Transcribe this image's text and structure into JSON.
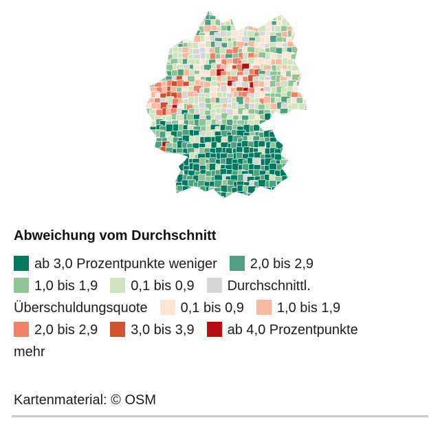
{
  "map": {
    "type": "choropleth",
    "region": "Germany"
  },
  "legend": {
    "title": "Abweichung vom Durchschnitt",
    "items": [
      {
        "label": "ab 3,0 Prozentpunkte weniger",
        "color": "#00795f"
      },
      {
        "label": "2,0 bis 2,9",
        "color": "#4fa07e"
      },
      {
        "label": "1,0 bis 1,9",
        "color": "#8fc497"
      },
      {
        "label": "0,1 bis 0,9",
        "color": "#cfe4be"
      },
      {
        "label": "Durchschnittl. Überschuldungsquote",
        "color": "#d6d6d6"
      },
      {
        "label": "0,1 bis 0,9",
        "color": "#fce4d6"
      },
      {
        "label": "1,0 bis 1,9",
        "color": "#f8b99e"
      },
      {
        "label": "2,0 bis 2,9",
        "color": "#ee8166"
      },
      {
        "label": "3,0 bis 3,9",
        "color": "#d2512e"
      },
      {
        "label": "ab 4,0 Prozentpunkte mehr",
        "color": "#b50d12"
      }
    ]
  },
  "footer": {
    "attribution": "Kartenmaterial: © OSM"
  }
}
